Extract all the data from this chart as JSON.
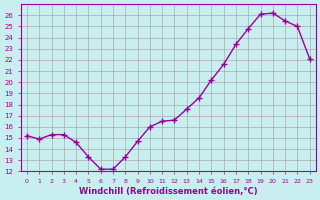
{
  "x": [
    0,
    1,
    2,
    3,
    4,
    5,
    6,
    7,
    8,
    9,
    10,
    11,
    12,
    13,
    14,
    15,
    16,
    17,
    18,
    19,
    20,
    21,
    22,
    23
  ],
  "y": [
    15.2,
    14.9,
    15.3,
    15.3,
    14.6,
    13.3,
    12.2,
    12.2,
    13.3,
    14.7,
    16.0,
    16.5,
    16.6,
    17.6,
    18.6,
    20.2,
    21.6,
    23.4,
    24.8,
    26.1,
    26.2,
    25.5,
    25.0,
    22.1
  ],
  "bg_color": "#c8eef0",
  "line_color": "#990099",
  "marker_color": "#990099",
  "grid_color": "#aaaaaa",
  "xlabel": "Windchill (Refroidissement éolien,°C)",
  "ylim": [
    12,
    27
  ],
  "xlim": [
    -0.5,
    23.5
  ],
  "yticks": [
    12,
    13,
    14,
    15,
    16,
    17,
    18,
    19,
    20,
    21,
    22,
    23,
    24,
    25,
    26
  ],
  "xticks": [
    0,
    1,
    2,
    3,
    4,
    5,
    6,
    7,
    8,
    9,
    10,
    11,
    12,
    13,
    14,
    15,
    16,
    17,
    18,
    19,
    20,
    21,
    22,
    23
  ],
  "label_color": "#990099",
  "tick_color": "#990099",
  "border_color": "#990099"
}
